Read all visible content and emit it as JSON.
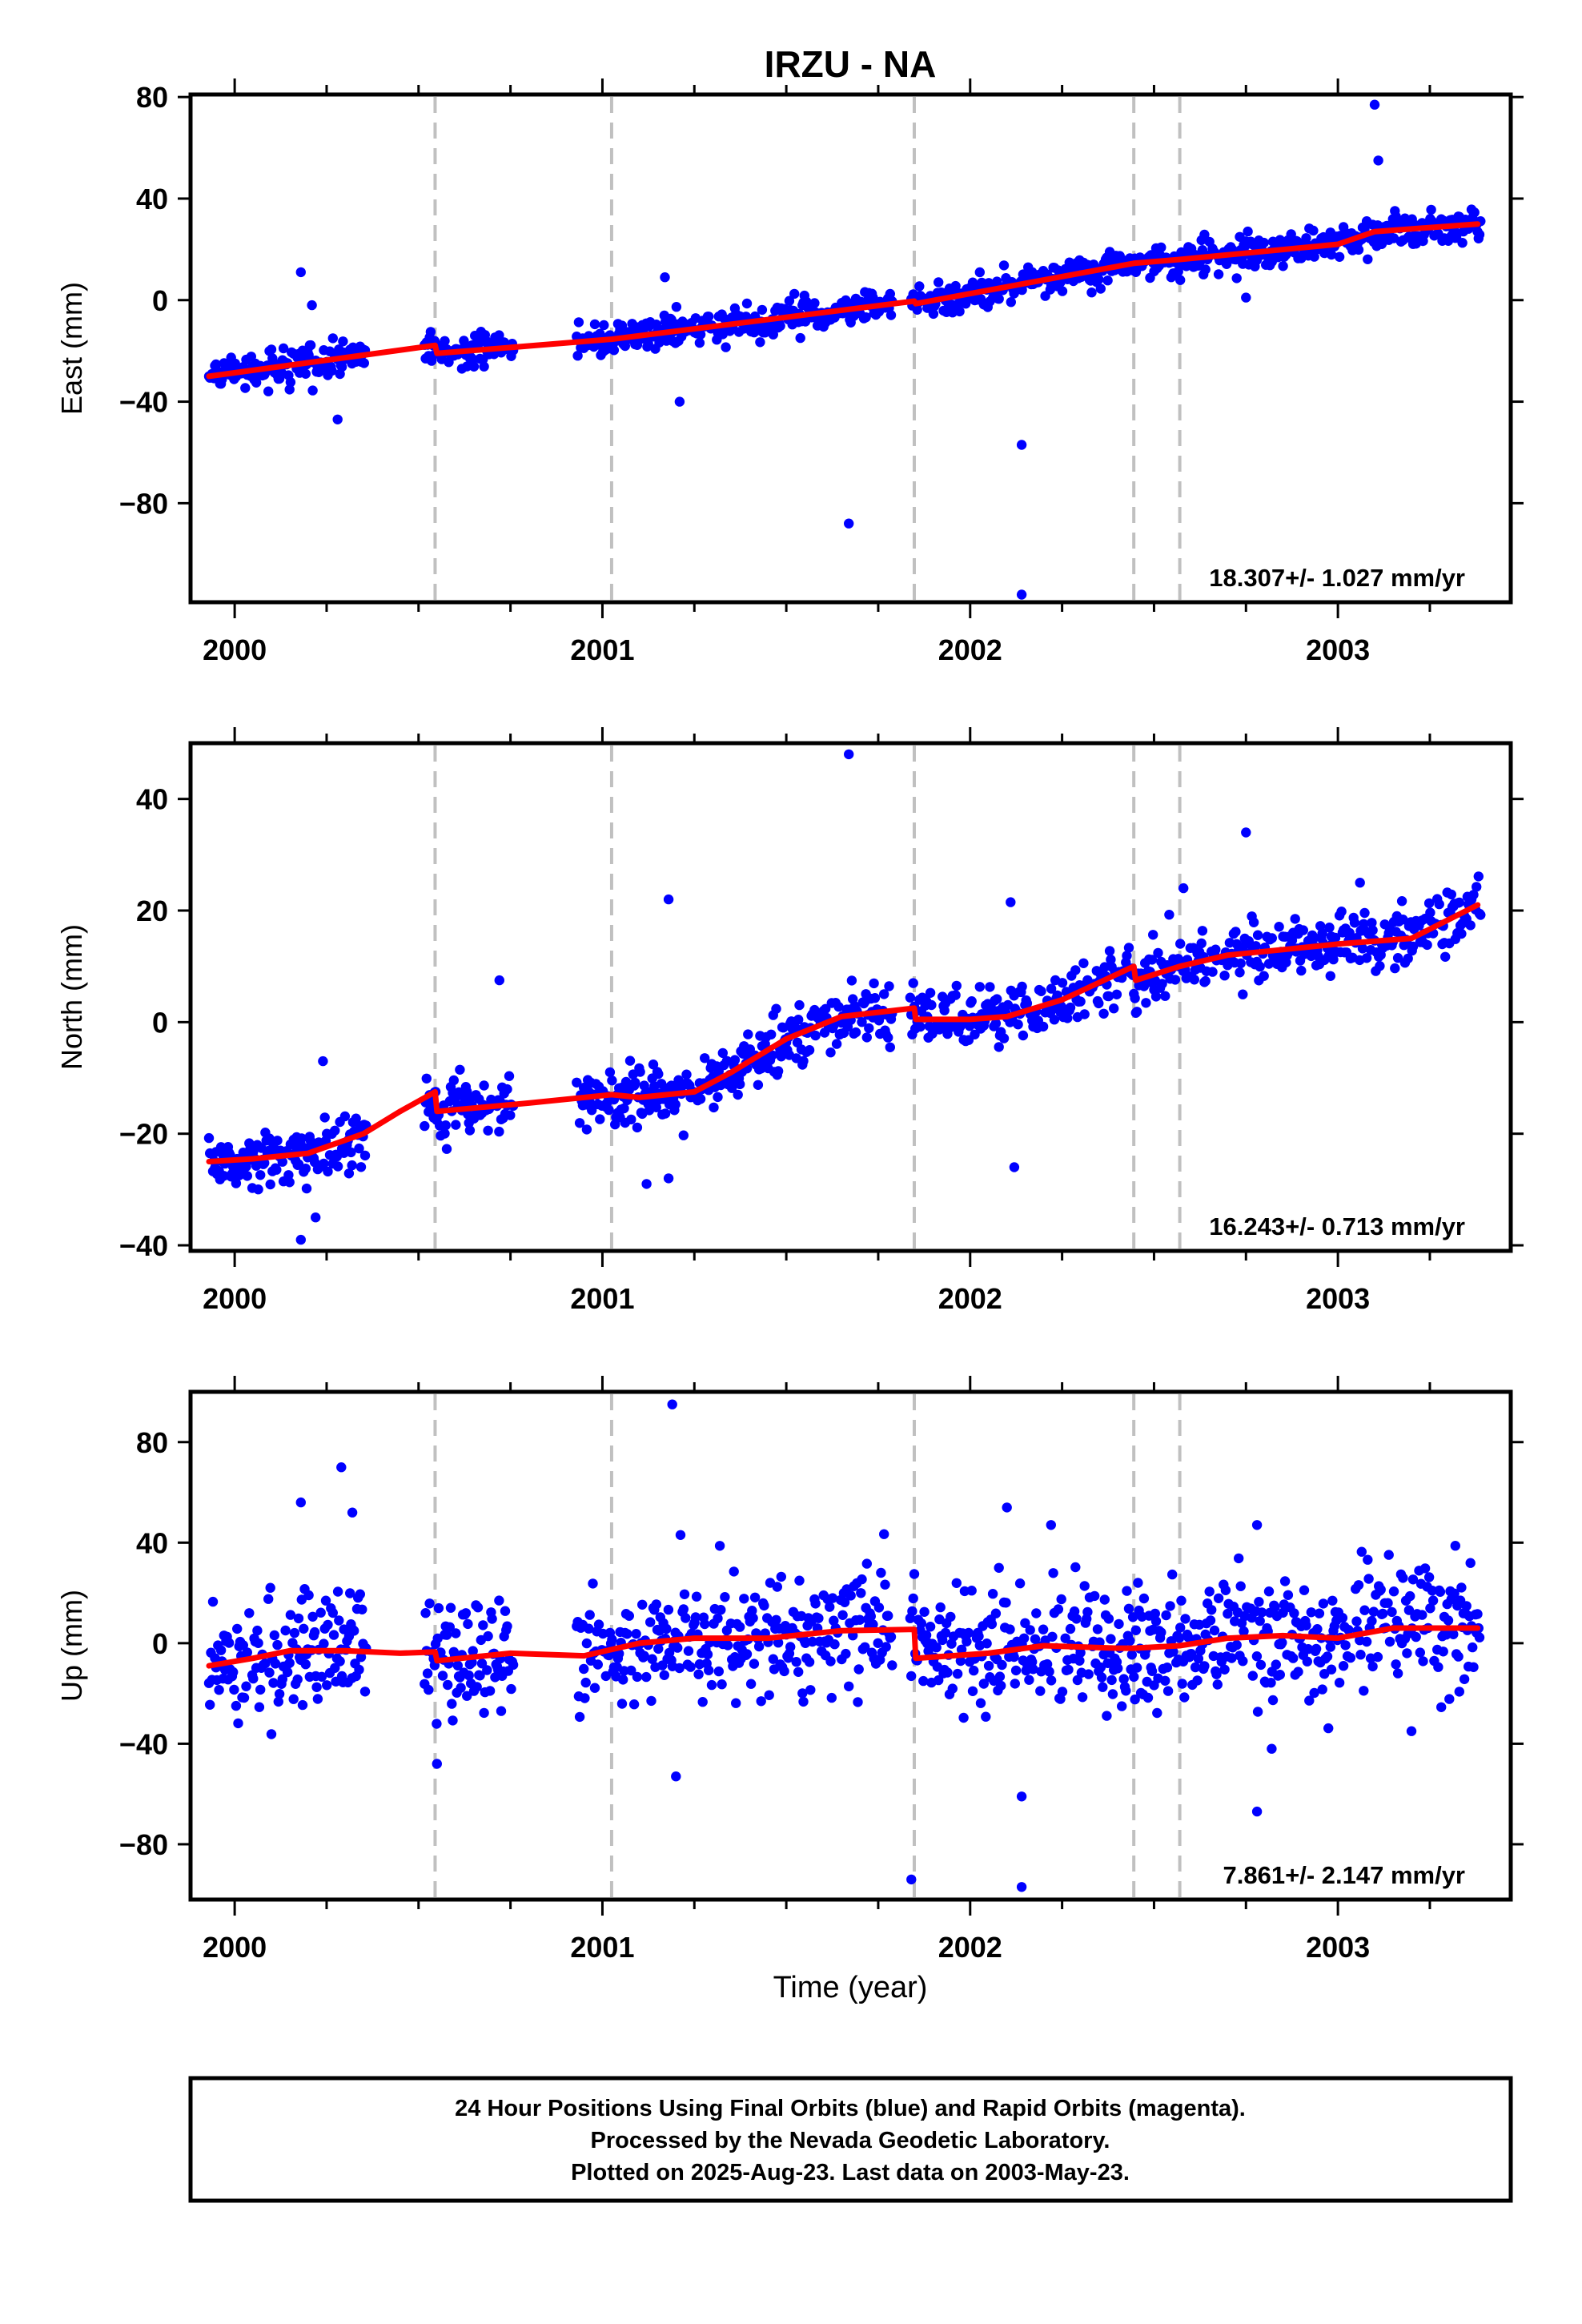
{
  "colors": {
    "final_orbits": "#0000ff",
    "model_fit": "#ff0000",
    "offset_lines": "#c0c0c0"
  },
  "chart_data": [
    {
      "type": "scatter",
      "title": "IRZU - NA",
      "ylabel": "East (mm)",
      "xlim": [
        1999.88,
        2003.47
      ],
      "ylim": [
        -119,
        81
      ],
      "yticks": [
        80,
        40,
        0,
        -40,
        -80
      ],
      "xticks": [
        2000,
        2001,
        2002,
        2003
      ],
      "grid": false,
      "offset_epochs": [
        2000.545,
        2001.025,
        2001.848,
        2002.445,
        2002.57
      ],
      "rate_label": "18.307+/- 1.027 mm/yr",
      "series": [
        {
          "type": "line",
          "values": [
            [
              1999.93,
              -30
            ],
            [
              2000.545,
              -17.8
            ],
            [
              2000.55,
              -21
            ],
            [
              2001.025,
              -15.4
            ],
            [
              2001.848,
              -0.4
            ],
            [
              2001.852,
              -1.4
            ],
            [
              2002.445,
              14.5
            ],
            [
              2002.57,
              16
            ],
            [
              2003.0,
              22
            ],
            [
              2003.1,
              27
            ],
            [
              2003.38,
              30
            ]
          ]
        },
        {
          "type": "outliers",
          "values": [
            [
              2000.18,
              11
            ],
            [
              2000.28,
              -47
            ],
            [
              2000.21,
              -2
            ],
            [
              2001.21,
              -40
            ],
            [
              2001.17,
              9
            ],
            [
              2001.67,
              -88
            ],
            [
              2002.14,
              -57
            ],
            [
              2002.14,
              -116
            ],
            [
              2002.75,
              1
            ],
            [
              2003.1,
              77
            ],
            [
              2003.11,
              55
            ]
          ]
        }
      ]
    },
    {
      "type": "scatter",
      "title": "",
      "ylabel": "North (mm)",
      "xlim": [
        1999.88,
        2003.47
      ],
      "ylim": [
        -41,
        50
      ],
      "yticks": [
        40,
        20,
        0,
        -20,
        -40
      ],
      "xticks": [
        2000,
        2001,
        2002,
        2003
      ],
      "grid": false,
      "offset_epochs": [
        2000.545,
        2001.025,
        2001.848,
        2002.445,
        2002.57
      ],
      "rate_label": "16.243+/- 0.713 mm/yr",
      "series": [
        {
          "type": "line",
          "values": [
            [
              1999.93,
              -25
            ],
            [
              2000.05,
              -24.5
            ],
            [
              2000.2,
              -23.5
            ],
            [
              2000.35,
              -20
            ],
            [
              2000.45,
              -16
            ],
            [
              2000.545,
              -12.5
            ],
            [
              2000.55,
              -16
            ],
            [
              2000.8,
              -14.5
            ],
            [
              2001.025,
              -13
            ],
            [
              2001.1,
              -13.5
            ],
            [
              2001.25,
              -12.5
            ],
            [
              2001.35,
              -9
            ],
            [
              2001.5,
              -3
            ],
            [
              2001.65,
              1
            ],
            [
              2001.848,
              2.5
            ],
            [
              2001.852,
              0.5
            ],
            [
              2002.0,
              0.5
            ],
            [
              2002.1,
              1
            ],
            [
              2002.25,
              4
            ],
            [
              2002.445,
              10
            ],
            [
              2002.45,
              7.5
            ],
            [
              2002.57,
              10
            ],
            [
              2002.7,
              12
            ],
            [
              2002.85,
              13
            ],
            [
              2003.0,
              14
            ],
            [
              2003.2,
              15
            ],
            [
              2003.38,
              21
            ]
          ]
        },
        {
          "type": "outliers",
          "values": [
            [
              2000.18,
              -39
            ],
            [
              2000.22,
              -35
            ],
            [
              2000.24,
              -7
            ],
            [
              2000.72,
              7.5
            ],
            [
              2001.18,
              22
            ],
            [
              2001.18,
              -28
            ],
            [
              2001.12,
              -29
            ],
            [
              2001.67,
              48
            ],
            [
              2002.11,
              21.5
            ],
            [
              2002.12,
              -26
            ],
            [
              2002.58,
              24
            ],
            [
              2002.75,
              34
            ],
            [
              2003.06,
              25
            ]
          ]
        }
      ]
    },
    {
      "type": "scatter",
      "title": "",
      "ylabel": "Up (mm)",
      "xlabel": "Time (year)",
      "xlim": [
        1999.88,
        2003.47
      ],
      "ylim": [
        -102,
        100
      ],
      "yticks": [
        80,
        40,
        0,
        -40,
        -80
      ],
      "xticks": [
        2000,
        2001,
        2002,
        2003
      ],
      "grid": false,
      "offset_epochs": [
        2000.545,
        2001.025,
        2001.848,
        2002.445,
        2002.57
      ],
      "rate_label": "7.861+/- 2.147 mm/yr",
      "series": [
        {
          "type": "line",
          "values": [
            [
              1999.93,
              -9
            ],
            [
              2000.05,
              -6
            ],
            [
              2000.15,
              -3
            ],
            [
              2000.3,
              -3
            ],
            [
              2000.45,
              -4
            ],
            [
              2000.545,
              -3.5
            ],
            [
              2000.55,
              -7
            ],
            [
              2000.75,
              -4
            ],
            [
              2000.95,
              -5
            ],
            [
              2001.1,
              0
            ],
            [
              2001.25,
              2
            ],
            [
              2001.45,
              2
            ],
            [
              2001.65,
              5
            ],
            [
              2001.848,
              5.5
            ],
            [
              2001.852,
              -6
            ],
            [
              2002.05,
              -4
            ],
            [
              2002.2,
              -1
            ],
            [
              2002.4,
              -2
            ],
            [
              2002.445,
              -2
            ],
            [
              2002.57,
              -1
            ],
            [
              2002.7,
              2
            ],
            [
              2002.85,
              3
            ],
            [
              2003.0,
              2
            ],
            [
              2003.15,
              6
            ],
            [
              2003.38,
              6
            ]
          ]
        },
        {
          "type": "outliers",
          "values": [
            [
              2000.18,
              56
            ],
            [
              2000.29,
              70
            ],
            [
              2000.32,
              52
            ],
            [
              2000.55,
              -48
            ],
            [
              2001.19,
              95
            ],
            [
              2001.2,
              -53
            ],
            [
              2001.84,
              -94
            ],
            [
              2002.14,
              -97
            ],
            [
              2002.14,
              -61
            ],
            [
              2002.22,
              47
            ],
            [
              2002.1,
              54
            ],
            [
              2002.78,
              47
            ],
            [
              2002.78,
              -67
            ],
            [
              2002.82,
              -42
            ],
            [
              2003.2,
              -35
            ]
          ]
        }
      ]
    }
  ],
  "footer": {
    "line1": "24 Hour Positions Using Final Orbits (blue) and Rapid Orbits (magenta).",
    "line2": "Processed by the Nevada Geodetic Laboratory.",
    "line3": "Plotted on 2025-Aug-23. Last data on 2003-May-23."
  }
}
